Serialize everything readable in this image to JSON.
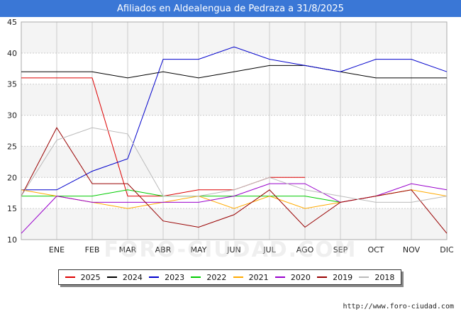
{
  "header": {
    "title": "Afiliados en Aldealengua de Pedraza a 31/8/2025"
  },
  "footer": {
    "source": "http://www.foro-ciudad.com",
    "watermark": "FORO-CIUDAD.COM"
  },
  "colors": {
    "title_bg": "#3a77d6",
    "plot_band": "#f4f4f4",
    "grid": "#cccccc"
  },
  "chart_data": {
    "type": "line",
    "title": "Afiliados en Aldealengua de Pedraza a 31/8/2025",
    "xlabel": "",
    "ylabel": "",
    "ylim": [
      10,
      45
    ],
    "yticks": [
      10,
      15,
      20,
      25,
      30,
      35,
      40,
      45
    ],
    "categories": [
      "",
      "ENE",
      "FEB",
      "MAR",
      "ABR",
      "MAY",
      "JUN",
      "JUL",
      "AGO",
      "SEP",
      "OCT",
      "NOV",
      "DIC"
    ],
    "legend_position": "bottom",
    "series": [
      {
        "name": "2025",
        "color": "#dd0000",
        "values": [
          36,
          36,
          36,
          17,
          17,
          18,
          18,
          20,
          20,
          null,
          null,
          null,
          null
        ]
      },
      {
        "name": "2024",
        "color": "#000000",
        "values": [
          37,
          37,
          37,
          36,
          37,
          36,
          37,
          38,
          38,
          37,
          36,
          36,
          36
        ]
      },
      {
        "name": "2023",
        "color": "#0000cc",
        "values": [
          18,
          18,
          21,
          23,
          39,
          39,
          41,
          39,
          38,
          37,
          39,
          39,
          37
        ]
      },
      {
        "name": "2022",
        "color": "#00cc00",
        "values": [
          17,
          17,
          17,
          18,
          17,
          17,
          17,
          17,
          17,
          16,
          null,
          null,
          null
        ]
      },
      {
        "name": "2021",
        "color": "#ffaa00",
        "values": [
          18,
          17,
          16,
          15,
          16,
          17,
          15,
          17,
          15,
          16,
          17,
          18,
          17
        ]
      },
      {
        "name": "2020",
        "color": "#9900cc",
        "values": [
          11,
          17,
          16,
          16,
          16,
          16,
          17,
          19,
          19,
          16,
          17,
          19,
          18
        ]
      },
      {
        "name": "2019",
        "color": "#990000",
        "values": [
          17,
          28,
          19,
          19,
          13,
          12,
          14,
          18,
          12,
          16,
          17,
          18,
          11
        ]
      },
      {
        "name": "2018",
        "color": "#bbbbbb",
        "values": [
          17,
          26,
          28,
          27,
          17,
          17,
          18,
          20,
          18,
          17,
          16,
          16,
          17
        ]
      }
    ]
  }
}
